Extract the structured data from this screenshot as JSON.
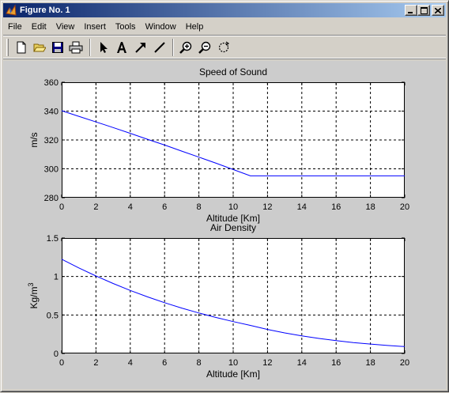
{
  "window": {
    "title": "Figure No. 1",
    "accent_color": "#0a246a"
  },
  "menubar": {
    "items": [
      "File",
      "Edit",
      "View",
      "Insert",
      "Tools",
      "Window",
      "Help"
    ]
  },
  "toolbar": {
    "icons": [
      "new-file-icon",
      "open-folder-icon",
      "save-icon",
      "print-icon",
      "select-arrow-icon",
      "insert-text-icon",
      "insert-arrow-icon",
      "insert-line-icon",
      "zoom-in-icon",
      "zoom-out-icon",
      "rotate-icon"
    ]
  },
  "chart_data": [
    {
      "type": "line",
      "title": "Speed of Sound",
      "xlabel": "Altitude [Km]",
      "ylabel": "m/s",
      "xlim": [
        0,
        20
      ],
      "ylim": [
        280,
        360
      ],
      "xticks": [
        "0",
        "2",
        "4",
        "6",
        "8",
        "10",
        "12",
        "14",
        "16",
        "18",
        "20"
      ],
      "yticks": [
        "280",
        "300",
        "320",
        "340",
        "360"
      ],
      "grid": true,
      "line_color": "#0000ff",
      "series": [
        {
          "x": [
            0,
            1,
            2,
            3,
            4,
            5,
            6,
            7,
            8,
            9,
            10,
            11,
            12,
            13,
            14,
            15,
            16,
            17,
            18,
            19,
            20
          ],
          "y": [
            340.3,
            336.4,
            332.5,
            328.6,
            324.6,
            320.5,
            316.5,
            312.3,
            308.1,
            303.9,
            299.5,
            295.1,
            295.1,
            295.1,
            295.1,
            295.1,
            295.1,
            295.1,
            295.1,
            295.1,
            295.1
          ]
        }
      ]
    },
    {
      "type": "line",
      "title": "Air Density",
      "xlabel": "Altitude [Km]",
      "ylabel": "Kg/m",
      "ylabel_superscript": "3",
      "xlim": [
        0,
        20
      ],
      "ylim": [
        0,
        1.5
      ],
      "xticks": [
        "0",
        "2",
        "4",
        "6",
        "8",
        "10",
        "12",
        "14",
        "16",
        "18",
        "20"
      ],
      "yticks": [
        "0",
        "0.5",
        "1",
        "1.5"
      ],
      "grid": true,
      "line_color": "#0000ff",
      "series": [
        {
          "x": [
            0,
            1,
            2,
            3,
            4,
            5,
            6,
            7,
            8,
            9,
            10,
            11,
            12,
            13,
            14,
            15,
            16,
            17,
            18,
            19,
            20
          ],
          "y": [
            1.225,
            1.112,
            1.007,
            0.909,
            0.819,
            0.736,
            0.66,
            0.59,
            0.526,
            0.467,
            0.414,
            0.365,
            0.312,
            0.267,
            0.228,
            0.195,
            0.166,
            0.142,
            0.122,
            0.104,
            0.089
          ]
        }
      ]
    }
  ]
}
